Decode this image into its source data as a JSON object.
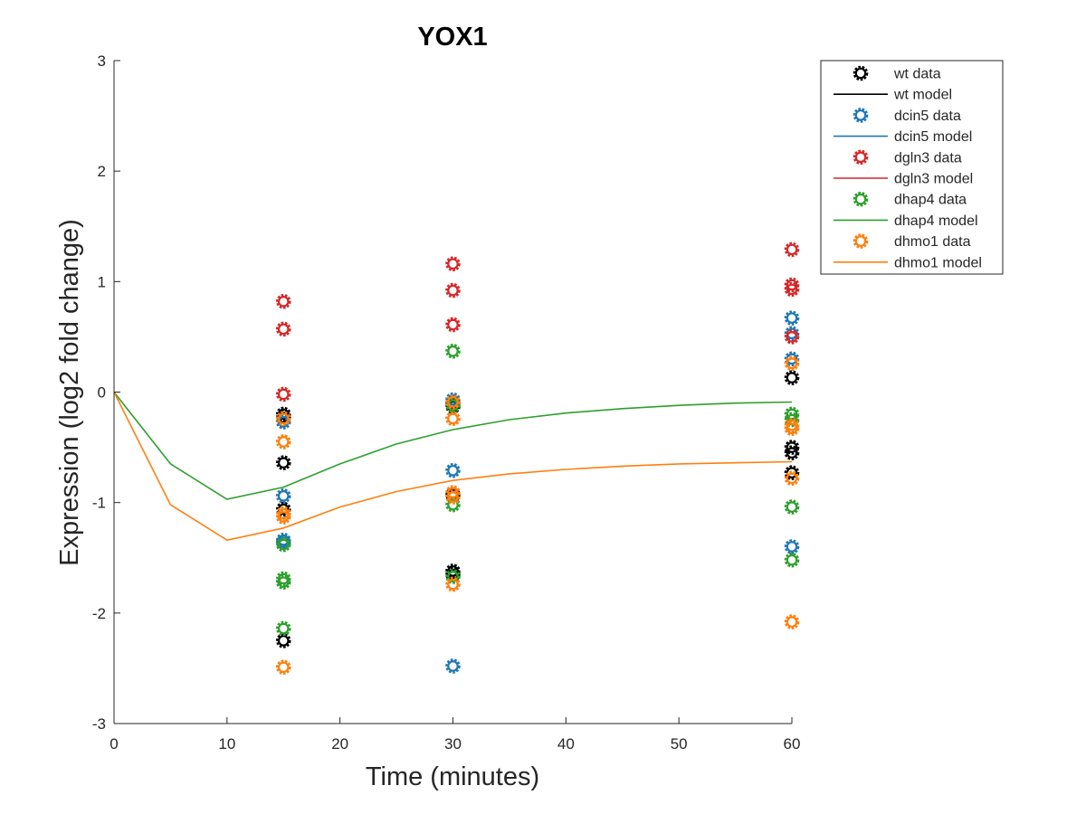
{
  "chart_data": {
    "type": "scatter",
    "title": "YOX1",
    "xlabel": "Time (minutes)",
    "ylabel": "Expression (log2 fold change)",
    "xlim": [
      0,
      60
    ],
    "ylim": [
      -3,
      3
    ],
    "xticks": [
      0,
      10,
      20,
      30,
      40,
      50,
      60
    ],
    "yticks": [
      -3,
      -2,
      -1,
      0,
      1,
      2,
      3
    ],
    "grid": false,
    "legend_position": "top-right outside",
    "series": [
      {
        "name": "wt data",
        "kind": "markers",
        "color": "#000000",
        "points": [
          [
            15,
            -0.2
          ],
          [
            15,
            -0.23
          ],
          [
            15,
            -0.64
          ],
          [
            15,
            -1.06
          ],
          [
            15,
            -2.25
          ],
          [
            30,
            -0.1
          ],
          [
            30,
            -0.13
          ],
          [
            30,
            -0.93
          ],
          [
            30,
            -1.62
          ],
          [
            30,
            -1.65
          ],
          [
            60,
            0.13
          ],
          [
            60,
            -0.5
          ],
          [
            60,
            -0.55
          ],
          [
            60,
            -0.73
          ]
        ]
      },
      {
        "name": "wt model",
        "kind": "line",
        "color": "#000000",
        "points": []
      },
      {
        "name": "dcin5 data",
        "kind": "markers",
        "color": "#1f77b4",
        "points": [
          [
            15,
            -0.27
          ],
          [
            15,
            -0.94
          ],
          [
            15,
            -1.34
          ],
          [
            15,
            -1.36
          ],
          [
            30,
            -0.07
          ],
          [
            30,
            -0.71
          ],
          [
            30,
            -2.48
          ],
          [
            60,
            0.67
          ],
          [
            60,
            0.53
          ],
          [
            60,
            0.3
          ],
          [
            60,
            -1.4
          ]
        ]
      },
      {
        "name": "dcin5 model",
        "kind": "line",
        "color": "#1f77b4",
        "points": []
      },
      {
        "name": "dgln3 data",
        "kind": "markers",
        "color": "#d62728",
        "points": [
          [
            15,
            0.82
          ],
          [
            15,
            0.57
          ],
          [
            15,
            -0.02
          ],
          [
            30,
            1.16
          ],
          [
            30,
            0.92
          ],
          [
            30,
            0.61
          ],
          [
            60,
            1.29
          ],
          [
            60,
            0.97
          ],
          [
            60,
            0.93
          ],
          [
            60,
            0.5
          ]
        ]
      },
      {
        "name": "dgln3 model",
        "kind": "line",
        "color": "#d62728",
        "points": []
      },
      {
        "name": "dhap4 data",
        "kind": "markers",
        "color": "#2ca02c",
        "points": [
          [
            15,
            -1.38
          ],
          [
            15,
            -1.69
          ],
          [
            15,
            -1.72
          ],
          [
            15,
            -2.14
          ],
          [
            30,
            0.37
          ],
          [
            30,
            -0.12
          ],
          [
            30,
            -1.02
          ],
          [
            30,
            -1.67
          ],
          [
            60,
            -0.2
          ],
          [
            60,
            -0.25
          ],
          [
            60,
            -1.04
          ],
          [
            60,
            -1.52
          ]
        ]
      },
      {
        "name": "dhap4 model",
        "kind": "line",
        "color": "#2ca02c",
        "points": [
          [
            0,
            0
          ],
          [
            5,
            -0.65
          ],
          [
            10,
            -0.97
          ],
          [
            15,
            -0.86
          ],
          [
            20,
            -0.65
          ],
          [
            25,
            -0.47
          ],
          [
            30,
            -0.34
          ],
          [
            35,
            -0.25
          ],
          [
            40,
            -0.19
          ],
          [
            45,
            -0.15
          ],
          [
            50,
            -0.12
          ],
          [
            55,
            -0.1
          ],
          [
            60,
            -0.09
          ]
        ]
      },
      {
        "name": "dhmo1 data",
        "kind": "markers",
        "color": "#ff7f0e",
        "points": [
          [
            15,
            -0.24
          ],
          [
            15,
            -0.45
          ],
          [
            15,
            -1.1
          ],
          [
            15,
            -1.13
          ],
          [
            15,
            -2.49
          ],
          [
            30,
            -0.09
          ],
          [
            30,
            -0.24
          ],
          [
            30,
            -0.91
          ],
          [
            30,
            -0.95
          ],
          [
            30,
            -1.74
          ],
          [
            60,
            0.26
          ],
          [
            60,
            -0.3
          ],
          [
            60,
            -0.33
          ],
          [
            60,
            -0.78
          ],
          [
            60,
            -2.08
          ]
        ]
      },
      {
        "name": "dhmo1 model",
        "kind": "line",
        "color": "#ff7f0e",
        "points": [
          [
            0,
            0
          ],
          [
            5,
            -1.02
          ],
          [
            10,
            -1.34
          ],
          [
            15,
            -1.23
          ],
          [
            20,
            -1.04
          ],
          [
            25,
            -0.9
          ],
          [
            30,
            -0.8
          ],
          [
            35,
            -0.74
          ],
          [
            40,
            -0.7
          ],
          [
            45,
            -0.67
          ],
          [
            50,
            -0.65
          ],
          [
            55,
            -0.64
          ],
          [
            60,
            -0.63
          ]
        ]
      }
    ]
  }
}
